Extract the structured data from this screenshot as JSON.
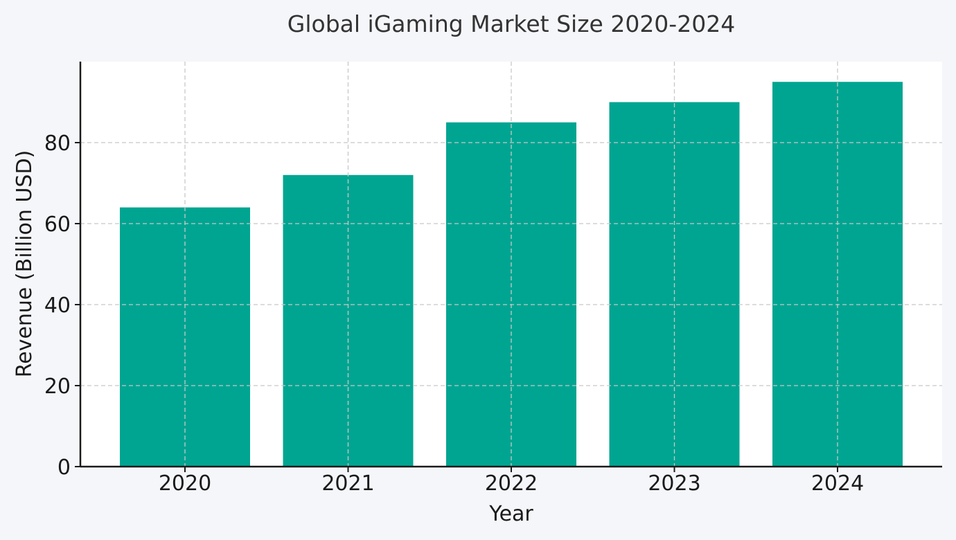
{
  "chart_data": {
    "type": "bar",
    "title": "Global iGaming Market Size 2020-2024",
    "xlabel": "Year",
    "ylabel": "Revenue (Billion USD)",
    "categories": [
      "2020",
      "2021",
      "2022",
      "2023",
      "2024"
    ],
    "values": [
      64,
      72,
      85,
      90,
      95
    ],
    "ylim": [
      0,
      100
    ],
    "yticks": [
      "0",
      "20",
      "40",
      "60",
      "80"
    ],
    "grid": true,
    "bar_color": "#00a591",
    "plot_background": "#ffffff",
    "page_background": "#f5f6fa"
  }
}
